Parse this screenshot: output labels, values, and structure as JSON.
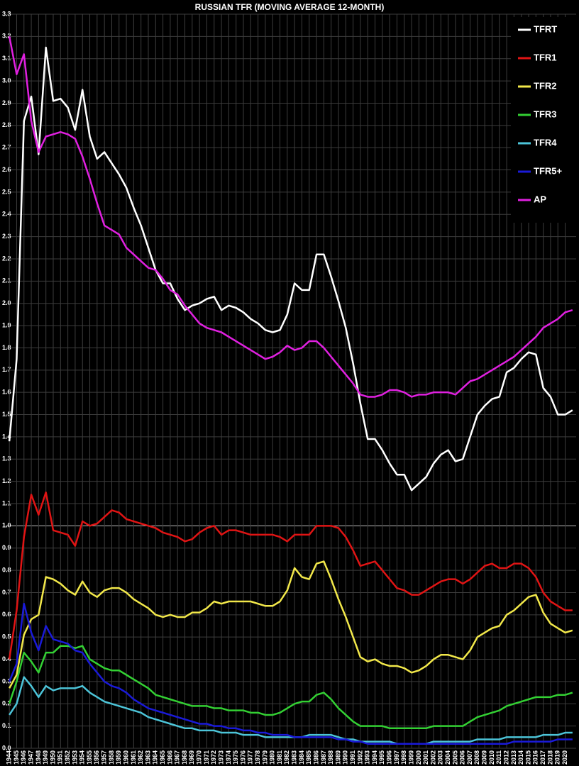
{
  "chart_data": {
    "type": "line",
    "title": "RUSSIAN TFR (MOVING AVERAGE 12-MONTH)",
    "x": [
      1944,
      1945,
      1946,
      1947,
      1948,
      1949,
      1950,
      1951,
      1952,
      1953,
      1954,
      1955,
      1956,
      1957,
      1958,
      1959,
      1960,
      1961,
      1962,
      1963,
      1964,
      1965,
      1966,
      1967,
      1968,
      1969,
      1970,
      1971,
      1972,
      1973,
      1974,
      1975,
      1976,
      1977,
      1978,
      1979,
      1980,
      1981,
      1982,
      1983,
      1984,
      1985,
      1986,
      1987,
      1988,
      1989,
      1990,
      1991,
      1992,
      1993,
      1994,
      1995,
      1996,
      1997,
      1998,
      1999,
      2000,
      2001,
      2002,
      2003,
      2004,
      2005,
      2006,
      2007,
      2008,
      2009,
      2010,
      2011,
      2012,
      2013,
      2014,
      2015,
      2016,
      2017,
      2018,
      2019,
      2020,
      2021
    ],
    "series": [
      {
        "name": "TFRT",
        "color": "#ffffff",
        "values": [
          1.38,
          1.75,
          2.82,
          2.93,
          2.67,
          3.15,
          2.91,
          2.92,
          2.88,
          2.78,
          2.96,
          2.75,
          2.65,
          2.68,
          2.63,
          2.58,
          2.52,
          2.43,
          2.35,
          2.25,
          2.15,
          2.09,
          2.09,
          2.02,
          1.97,
          1.99,
          2.0,
          2.02,
          2.03,
          1.97,
          1.99,
          1.98,
          1.96,
          1.93,
          1.91,
          1.88,
          1.87,
          1.88,
          1.95,
          2.09,
          2.06,
          2.06,
          2.22,
          2.22,
          2.12,
          2.01,
          1.89,
          1.73,
          1.55,
          1.39,
          1.39,
          1.34,
          1.28,
          1.23,
          1.23,
          1.16,
          1.19,
          1.22,
          1.28,
          1.32,
          1.34,
          1.29,
          1.3,
          1.4,
          1.5,
          1.54,
          1.57,
          1.58,
          1.69,
          1.71,
          1.75,
          1.78,
          1.77,
          1.62,
          1.58,
          1.5,
          1.5,
          1.52
        ]
      },
      {
        "name": "TFR1",
        "color": "#e01414",
        "values": [
          0.4,
          0.62,
          0.95,
          1.14,
          1.05,
          1.15,
          0.98,
          0.97,
          0.96,
          0.91,
          1.02,
          1.0,
          1.01,
          1.04,
          1.07,
          1.06,
          1.03,
          1.02,
          1.01,
          1.0,
          0.99,
          0.97,
          0.96,
          0.95,
          0.93,
          0.94,
          0.97,
          0.99,
          1.0,
          0.96,
          0.98,
          0.98,
          0.97,
          0.96,
          0.96,
          0.96,
          0.96,
          0.95,
          0.93,
          0.96,
          0.96,
          0.96,
          1.0,
          1.0,
          1.0,
          0.99,
          0.95,
          0.89,
          0.82,
          0.83,
          0.84,
          0.8,
          0.76,
          0.72,
          0.71,
          0.69,
          0.69,
          0.71,
          0.73,
          0.75,
          0.76,
          0.76,
          0.74,
          0.76,
          0.79,
          0.82,
          0.83,
          0.81,
          0.81,
          0.83,
          0.83,
          0.81,
          0.77,
          0.7,
          0.66,
          0.64,
          0.62,
          0.62
        ]
      },
      {
        "name": "TFR2",
        "color": "#f2e84a",
        "values": [
          0.27,
          0.33,
          0.51,
          0.58,
          0.6,
          0.77,
          0.76,
          0.74,
          0.71,
          0.69,
          0.75,
          0.7,
          0.68,
          0.71,
          0.72,
          0.72,
          0.7,
          0.67,
          0.65,
          0.63,
          0.6,
          0.59,
          0.6,
          0.59,
          0.59,
          0.61,
          0.61,
          0.63,
          0.66,
          0.65,
          0.66,
          0.66,
          0.66,
          0.66,
          0.65,
          0.64,
          0.64,
          0.66,
          0.71,
          0.81,
          0.77,
          0.76,
          0.83,
          0.84,
          0.76,
          0.67,
          0.59,
          0.5,
          0.41,
          0.39,
          0.4,
          0.38,
          0.37,
          0.37,
          0.36,
          0.34,
          0.35,
          0.37,
          0.4,
          0.42,
          0.42,
          0.41,
          0.4,
          0.44,
          0.5,
          0.52,
          0.54,
          0.55,
          0.6,
          0.62,
          0.65,
          0.68,
          0.69,
          0.61,
          0.56,
          0.54,
          0.52,
          0.53
        ]
      },
      {
        "name": "TFR3",
        "color": "#33d033",
        "values": [
          0.2,
          0.3,
          0.43,
          0.39,
          0.34,
          0.43,
          0.43,
          0.46,
          0.46,
          0.45,
          0.46,
          0.4,
          0.38,
          0.36,
          0.35,
          0.35,
          0.33,
          0.31,
          0.29,
          0.27,
          0.24,
          0.23,
          0.22,
          0.21,
          0.2,
          0.19,
          0.19,
          0.19,
          0.18,
          0.18,
          0.17,
          0.17,
          0.17,
          0.16,
          0.16,
          0.15,
          0.15,
          0.16,
          0.18,
          0.2,
          0.21,
          0.21,
          0.24,
          0.25,
          0.22,
          0.18,
          0.15,
          0.12,
          0.1,
          0.1,
          0.1,
          0.1,
          0.09,
          0.09,
          0.09,
          0.09,
          0.09,
          0.09,
          0.1,
          0.1,
          0.1,
          0.1,
          0.1,
          0.12,
          0.14,
          0.15,
          0.16,
          0.17,
          0.19,
          0.2,
          0.21,
          0.22,
          0.23,
          0.23,
          0.23,
          0.24,
          0.24,
          0.25
        ]
      },
      {
        "name": "TFR4",
        "color": "#4cc4d8",
        "values": [
          0.15,
          0.2,
          0.32,
          0.28,
          0.23,
          0.28,
          0.26,
          0.27,
          0.27,
          0.27,
          0.28,
          0.25,
          0.23,
          0.21,
          0.2,
          0.19,
          0.18,
          0.17,
          0.16,
          0.14,
          0.13,
          0.12,
          0.11,
          0.1,
          0.09,
          0.09,
          0.08,
          0.08,
          0.08,
          0.07,
          0.07,
          0.07,
          0.06,
          0.06,
          0.06,
          0.05,
          0.05,
          0.05,
          0.05,
          0.05,
          0.05,
          0.06,
          0.06,
          0.06,
          0.06,
          0.05,
          0.04,
          0.04,
          0.03,
          0.03,
          0.03,
          0.03,
          0.03,
          0.02,
          0.02,
          0.02,
          0.02,
          0.02,
          0.03,
          0.03,
          0.03,
          0.03,
          0.03,
          0.03,
          0.04,
          0.04,
          0.04,
          0.04,
          0.05,
          0.05,
          0.05,
          0.05,
          0.05,
          0.06,
          0.06,
          0.06,
          0.07,
          0.07
        ]
      },
      {
        "name": "TFR5+",
        "color": "#1a1ad8",
        "values": [
          0.3,
          0.38,
          0.65,
          0.52,
          0.44,
          0.55,
          0.49,
          0.48,
          0.47,
          0.44,
          0.43,
          0.38,
          0.34,
          0.3,
          0.28,
          0.27,
          0.25,
          0.22,
          0.2,
          0.18,
          0.17,
          0.16,
          0.15,
          0.14,
          0.13,
          0.12,
          0.11,
          0.11,
          0.1,
          0.1,
          0.09,
          0.09,
          0.08,
          0.08,
          0.07,
          0.07,
          0.06,
          0.06,
          0.06,
          0.05,
          0.05,
          0.05,
          0.05,
          0.05,
          0.05,
          0.04,
          0.04,
          0.03,
          0.03,
          0.02,
          0.02,
          0.02,
          0.02,
          0.02,
          0.02,
          0.02,
          0.02,
          0.02,
          0.02,
          0.02,
          0.02,
          0.02,
          0.02,
          0.02,
          0.02,
          0.02,
          0.02,
          0.02,
          0.02,
          0.03,
          0.03,
          0.03,
          0.03,
          0.03,
          0.03,
          0.04,
          0.04,
          0.04
        ]
      },
      {
        "name": "AP",
        "color": "#e020e0",
        "values": [
          3.2,
          3.03,
          3.12,
          2.82,
          2.68,
          2.75,
          2.76,
          2.77,
          2.76,
          2.74,
          2.66,
          2.56,
          2.45,
          2.35,
          2.33,
          2.31,
          2.25,
          2.22,
          2.19,
          2.16,
          2.15,
          2.11,
          2.06,
          2.04,
          1.99,
          1.95,
          1.91,
          1.89,
          1.88,
          1.87,
          1.85,
          1.83,
          1.81,
          1.79,
          1.77,
          1.75,
          1.76,
          1.78,
          1.81,
          1.79,
          1.8,
          1.83,
          1.83,
          1.8,
          1.76,
          1.72,
          1.68,
          1.64,
          1.59,
          1.58,
          1.58,
          1.59,
          1.61,
          1.61,
          1.6,
          1.58,
          1.59,
          1.59,
          1.6,
          1.6,
          1.6,
          1.59,
          1.62,
          1.65,
          1.66,
          1.68,
          1.7,
          1.72,
          1.74,
          1.76,
          1.79,
          1.82,
          1.85,
          1.89,
          1.91,
          1.93,
          1.96,
          1.97
        ]
      }
    ],
    "xlim": [
      1943.5,
      2021.5
    ],
    "xticks": [
      1944,
      1945,
      1946,
      1947,
      1948,
      1949,
      1950,
      1951,
      1952,
      1953,
      1954,
      1955,
      1956,
      1957,
      1958,
      1959,
      1960,
      1961,
      1962,
      1963,
      1964,
      1965,
      1966,
      1967,
      1968,
      1969,
      1970,
      1971,
      1972,
      1973,
      1974,
      1975,
      1976,
      1977,
      1978,
      1979,
      1980,
      1981,
      1982,
      1983,
      1984,
      1985,
      1986,
      1987,
      1988,
      1989,
      1990,
      1991,
      1992,
      1993,
      1994,
      1995,
      1996,
      1997,
      1998,
      1999,
      2000,
      2001,
      2002,
      2003,
      2004,
      2005,
      2006,
      2007,
      2008,
      2009,
      2010,
      2011,
      2012,
      2013,
      2014,
      2015,
      2016,
      2017,
      2018,
      2019,
      2020
    ],
    "ylim": [
      0,
      3.3
    ],
    "yticks": [
      {
        "value": 0,
        "label": "0.0"
      },
      0.1,
      0.2,
      0.3,
      0.4,
      0.5,
      0.6,
      0.7,
      0.8,
      0.9,
      {
        "value": 1,
        "label": "1.0"
      },
      1.1,
      1.2,
      1.3,
      1.4,
      1.5,
      1.6,
      1.7,
      1.8,
      1.9,
      {
        "value": 2,
        "label": "2.0"
      },
      2.1,
      2.2,
      2.3,
      2.4,
      2.5,
      2.6,
      2.7,
      2.8,
      2.9,
      {
        "value": 3,
        "label": "3.0"
      },
      3.1,
      3.2,
      3.3
    ],
    "grid": true,
    "legend": "upper-right"
  }
}
